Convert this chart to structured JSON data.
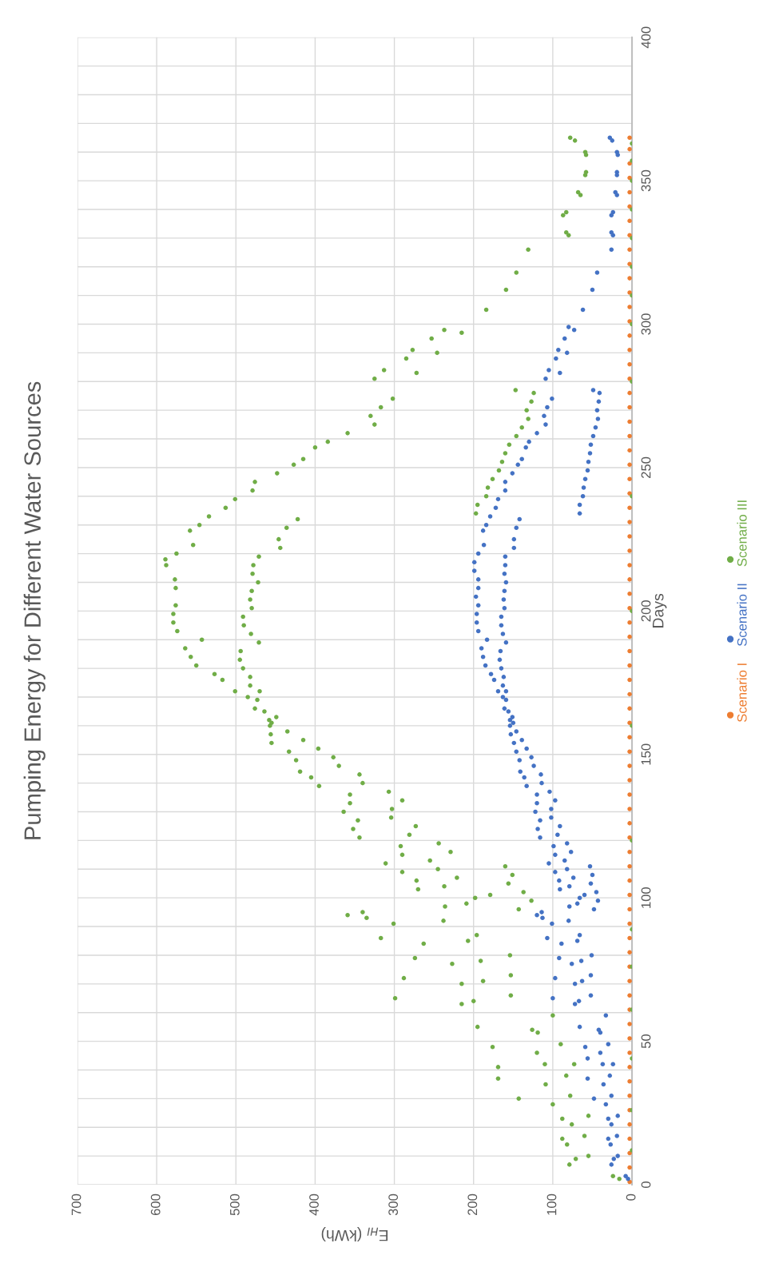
{
  "chart_data": {
    "type": "scatter",
    "orientation": "horizontal",
    "title": "Pumping Energy for Different Water Sources",
    "xlabel": "E$_{HI}$ (kWh)",
    "ylabel": "Days",
    "xlim": [
      700,
      0
    ],
    "xticks": [
      0,
      100,
      200,
      300,
      400,
      500,
      600,
      700
    ],
    "ylim": [
      0,
      400
    ],
    "yticks": [
      0,
      {
        "value": 10,
        "label": null
      },
      {
        "value": 20,
        "label": null
      },
      {
        "value": 30,
        "label": null
      },
      {
        "value": 40,
        "label": null
      },
      50,
      {
        "value": 60,
        "label": null
      },
      {
        "value": 70,
        "label": null
      },
      {
        "value": 80,
        "label": null
      },
      {
        "value": 90,
        "label": null
      },
      100,
      {
        "value": 110,
        "label": null
      },
      {
        "value": 120,
        "label": null
      },
      {
        "value": 130,
        "label": null
      },
      {
        "value": 140,
        "label": null
      },
      150,
      {
        "value": 160,
        "label": null
      },
      {
        "value": 170,
        "label": null
      },
      {
        "value": 180,
        "label": null
      },
      {
        "value": 190,
        "label": null
      },
      200,
      {
        "value": 210,
        "label": null
      },
      {
        "value": 220,
        "label": null
      },
      {
        "value": 230,
        "label": null
      },
      {
        "value": 240,
        "label": null
      },
      250,
      {
        "value": 260,
        "label": null
      },
      {
        "value": 270,
        "label": null
      },
      {
        "value": 280,
        "label": null
      },
      {
        "value": 290,
        "label": null
      },
      300,
      {
        "value": 310,
        "label": null
      },
      {
        "value": 320,
        "label": null
      },
      {
        "value": 330,
        "label": null
      },
      {
        "value": 340,
        "label": null
      },
      350,
      {
        "value": 360,
        "label": null
      },
      {
        "value": 370,
        "label": null
      },
      {
        "value": 380,
        "label": null
      },
      {
        "value": 390,
        "label": null
      },
      400
    ],
    "grid": true,
    "legend": "right",
    "marker": "circle",
    "series": [
      {
        "name": "Scenario I",
        "color": "#ed7d31",
        "x": [
          1,
          6,
          11,
          16,
          21,
          26,
          31,
          36,
          41,
          46,
          51,
          56,
          61,
          66,
          71,
          76,
          81,
          86,
          91,
          96,
          101,
          106,
          111,
          116,
          121,
          126,
          131,
          136,
          141,
          146,
          151,
          156,
          161,
          166,
          171,
          176,
          181,
          186,
          191,
          196,
          201,
          206,
          211,
          216,
          221,
          226,
          231,
          236,
          241,
          246,
          251,
          256,
          261,
          266,
          271,
          276,
          281,
          286,
          291,
          296,
          301,
          306,
          311,
          316,
          321,
          326,
          331,
          336,
          341,
          346,
          351,
          356,
          361,
          365
        ],
        "values": [
          3,
          3,
          3,
          3,
          3,
          3,
          3,
          3,
          3,
          3,
          3,
          3,
          3,
          3,
          3,
          3,
          3,
          3,
          3,
          3,
          3,
          3,
          3,
          3,
          3,
          3,
          3,
          3,
          3,
          3,
          3,
          3,
          3,
          3,
          3,
          3,
          3,
          3,
          3,
          3,
          3,
          3,
          3,
          3,
          3,
          3,
          3,
          3,
          3,
          3,
          3,
          3,
          3,
          3,
          3,
          3,
          3,
          3,
          3,
          3,
          3,
          3,
          3,
          3,
          3,
          3,
          3,
          3,
          3,
          3,
          3,
          3,
          3,
          3
        ]
      },
      {
        "name": "Scenario II",
        "color": "#4472c4",
        "x": [
          72,
          70,
          71,
          73,
          65,
          63,
          64,
          66,
          55,
          54,
          53,
          59,
          48,
          46,
          49,
          44,
          42,
          42,
          37,
          35,
          38,
          30,
          28,
          31,
          24,
          23,
          21,
          17,
          16,
          14,
          10,
          9,
          7,
          3,
          2,
          139,
          136,
          137,
          133,
          134,
          130,
          131,
          128,
          127,
          124,
          125,
          121,
          122,
          118,
          119,
          115,
          116,
          112,
          113,
          111,
          109,
          110,
          108,
          106,
          107,
          105,
          103,
          104,
          102,
          100,
          101,
          97,
          98,
          99,
          94,
          95,
          93,
          92,
          96,
          91,
          86,
          87,
          85,
          84,
          80,
          79,
          77,
          78,
          217,
          214,
          216,
          213,
          210,
          211,
          208,
          207,
          205,
          204,
          202,
          201,
          199,
          198,
          196,
          195,
          193,
          192,
          189,
          190,
          187,
          186,
          184,
          183,
          181,
          180,
          178,
          177,
          176,
          174,
          172,
          172,
          170,
          169,
          166,
          165,
          163,
          162,
          161,
          160,
          158,
          157,
          155,
          154,
          152,
          151,
          149,
          148,
          146,
          144,
          142,
          143,
          140,
          295,
          291,
          290,
          288,
          284,
          283,
          281,
          277,
          276,
          273,
          270,
          267,
          264,
          261,
          258,
          255,
          252,
          249,
          246,
          243,
          240,
          237,
          234,
          274,
          271,
          268,
          265,
          262,
          259,
          257,
          253,
          251,
          248,
          245,
          242,
          239,
          236,
          233,
          230,
          228,
          223,
          220,
          232,
          229,
          225,
          222,
          219,
          298,
          299,
          305,
          312,
          318,
          326,
          332,
          331,
          339,
          338,
          346,
          345,
          352,
          353,
          360,
          359,
          365,
          364
        ],
        "values": [
          97,
          72,
          63,
          52,
          100,
          72,
          67,
          52,
          66,
          42,
          40,
          33,
          59,
          40,
          30,
          56,
          37,
          24,
          56,
          36,
          28,
          48,
          33,
          26,
          18,
          30,
          26,
          19,
          30,
          27,
          18,
          23,
          26,
          8,
          5,
          133,
          120,
          104,
          120,
          97,
          122,
          102,
          102,
          116,
          119,
          91,
          116,
          94,
          99,
          82,
          97,
          77,
          105,
          85,
          53,
          97,
          82,
          50,
          92,
          74,
          52,
          91,
          79,
          45,
          66,
          60,
          79,
          69,
          43,
          120,
          114,
          113,
          80,
          48,
          101,
          107,
          66,
          69,
          89,
          51,
          92,
          76,
          64,
          199,
          199,
          160,
          161,
          159,
          194,
          194,
          161,
          197,
          162,
          194,
          161,
          196,
          165,
          196,
          165,
          194,
          163,
          159,
          183,
          190,
          166,
          188,
          167,
          185,
          165,
          178,
          162,
          174,
          163,
          169,
          159,
          163,
          159,
          161,
          156,
          151,
          154,
          150,
          154,
          146,
          153,
          139,
          149,
          133,
          146,
          127,
          142,
          124,
          141,
          136,
          115,
          114,
          85,
          93,
          82,
          96,
          105,
          91,
          109,
          49,
          41,
          42,
          44,
          43,
          46,
          49,
          52,
          53,
          55,
          56,
          59,
          61,
          62,
          66,
          66,
          101,
          107,
          111,
          109,
          120,
          130,
          134,
          139,
          144,
          151,
          160,
          160,
          169,
          172,
          179,
          184,
          188,
          187,
          194,
          142,
          146,
          149,
          149,
          160,
          73,
          80,
          62,
          50,
          44,
          26,
          26,
          24,
          24,
          26,
          21,
          19,
          19,
          19,
          19,
          18,
          28,
          25
        ]
      },
      {
        "name": "Scenario III",
        "color": "#70ad47",
        "x": [
          72,
          70,
          71,
          73,
          65,
          63,
          64,
          66,
          55,
          54,
          53,
          59,
          48,
          46,
          49,
          41,
          42,
          42,
          37,
          35,
          38,
          30,
          28,
          31,
          24,
          23,
          21,
          17,
          16,
          14,
          10,
          9,
          7,
          3,
          2,
          144,
          142,
          139,
          143,
          140,
          136,
          137,
          133,
          134,
          130,
          131,
          128,
          127,
          124,
          125,
          121,
          122,
          118,
          119,
          115,
          116,
          112,
          113,
          109,
          110,
          111,
          106,
          107,
          108,
          103,
          104,
          105,
          102,
          100,
          101,
          97,
          98,
          99,
          94,
          95,
          93,
          92,
          96,
          91,
          86,
          87,
          85,
          84,
          80,
          79,
          77,
          78,
          218,
          216,
          216,
          213,
          210,
          211,
          208,
          207,
          204,
          201,
          202,
          199,
          196,
          193,
          198,
          195,
          192,
          189,
          190,
          187,
          184,
          181,
          186,
          183,
          180,
          178,
          176,
          172,
          177,
          174,
          172,
          170,
          169,
          166,
          165,
          162,
          163,
          160,
          161,
          158,
          157,
          155,
          154,
          152,
          151,
          149,
          148,
          146,
          295,
          291,
          290,
          288,
          284,
          283,
          281,
          277,
          276,
          273,
          270,
          267,
          264,
          261,
          258,
          255,
          252,
          249,
          246,
          243,
          240,
          237,
          234,
          274,
          271,
          268,
          265,
          262,
          259,
          257,
          253,
          251,
          248,
          245,
          242,
          239,
          236,
          233,
          230,
          228,
          223,
          220,
          232,
          229,
          225,
          222,
          219,
          298,
          297,
          305,
          312,
          318,
          326,
          332,
          331,
          339,
          338,
          346,
          345,
          352,
          353,
          360,
          359,
          365,
          364,
          12,
          26,
          44,
          61,
          76,
          89,
          120,
          160,
          200,
          240,
          280,
          300,
          310,
          320,
          330,
          340,
          350,
          357,
          363
        ],
        "values": [
          288,
          215,
          188,
          153,
          299,
          215,
          200,
          153,
          195,
          126,
          119,
          100,
          176,
          120,
          90,
          169,
          110,
          73,
          169,
          109,
          83,
          143,
          100,
          78,
          55,
          88,
          76,
          60,
          88,
          82,
          55,
          71,
          79,
          24,
          16,
          419,
          405,
          395,
          344,
          340,
          356,
          307,
          356,
          290,
          364,
          303,
          304,
          346,
          352,
          273,
          344,
          281,
          292,
          244,
          290,
          229,
          311,
          255,
          290,
          245,
          160,
          272,
          221,
          151,
          270,
          237,
          156,
          137,
          198,
          179,
          236,
          209,
          127,
          359,
          340,
          335,
          238,
          143,
          301,
          317,
          196,
          207,
          263,
          154,
          274,
          227,
          191,
          589,
          588,
          478,
          479,
          472,
          577,
          576,
          480,
          482,
          480,
          576,
          579,
          579,
          574,
          491,
          490,
          481,
          471,
          543,
          564,
          557,
          550,
          494,
          495,
          491,
          527,
          517,
          501,
          482,
          482,
          470,
          485,
          473,
          476,
          464,
          458,
          449,
          457,
          455,
          435,
          456,
          415,
          455,
          396,
          433,
          377,
          424,
          370,
          253,
          277,
          246,
          285,
          313,
          272,
          325,
          147,
          124,
          127,
          133,
          131,
          139,
          146,
          155,
          160,
          164,
          168,
          176,
          182,
          184,
          195,
          197,
          302,
          317,
          330,
          325,
          359,
          384,
          400,
          415,
          427,
          448,
          476,
          479,
          501,
          513,
          534,
          546,
          558,
          554,
          575,
          422,
          436,
          446,
          444,
          471,
          237,
          215,
          184,
          159,
          146,
          131,
          83,
          80,
          83,
          87,
          68,
          65,
          59,
          58,
          59,
          58,
          78,
          72,
          0,
          0,
          0,
          0,
          0,
          0,
          0,
          0,
          0,
          0,
          0,
          0,
          0,
          0,
          0,
          0,
          0,
          0,
          0
        ]
      }
    ]
  }
}
